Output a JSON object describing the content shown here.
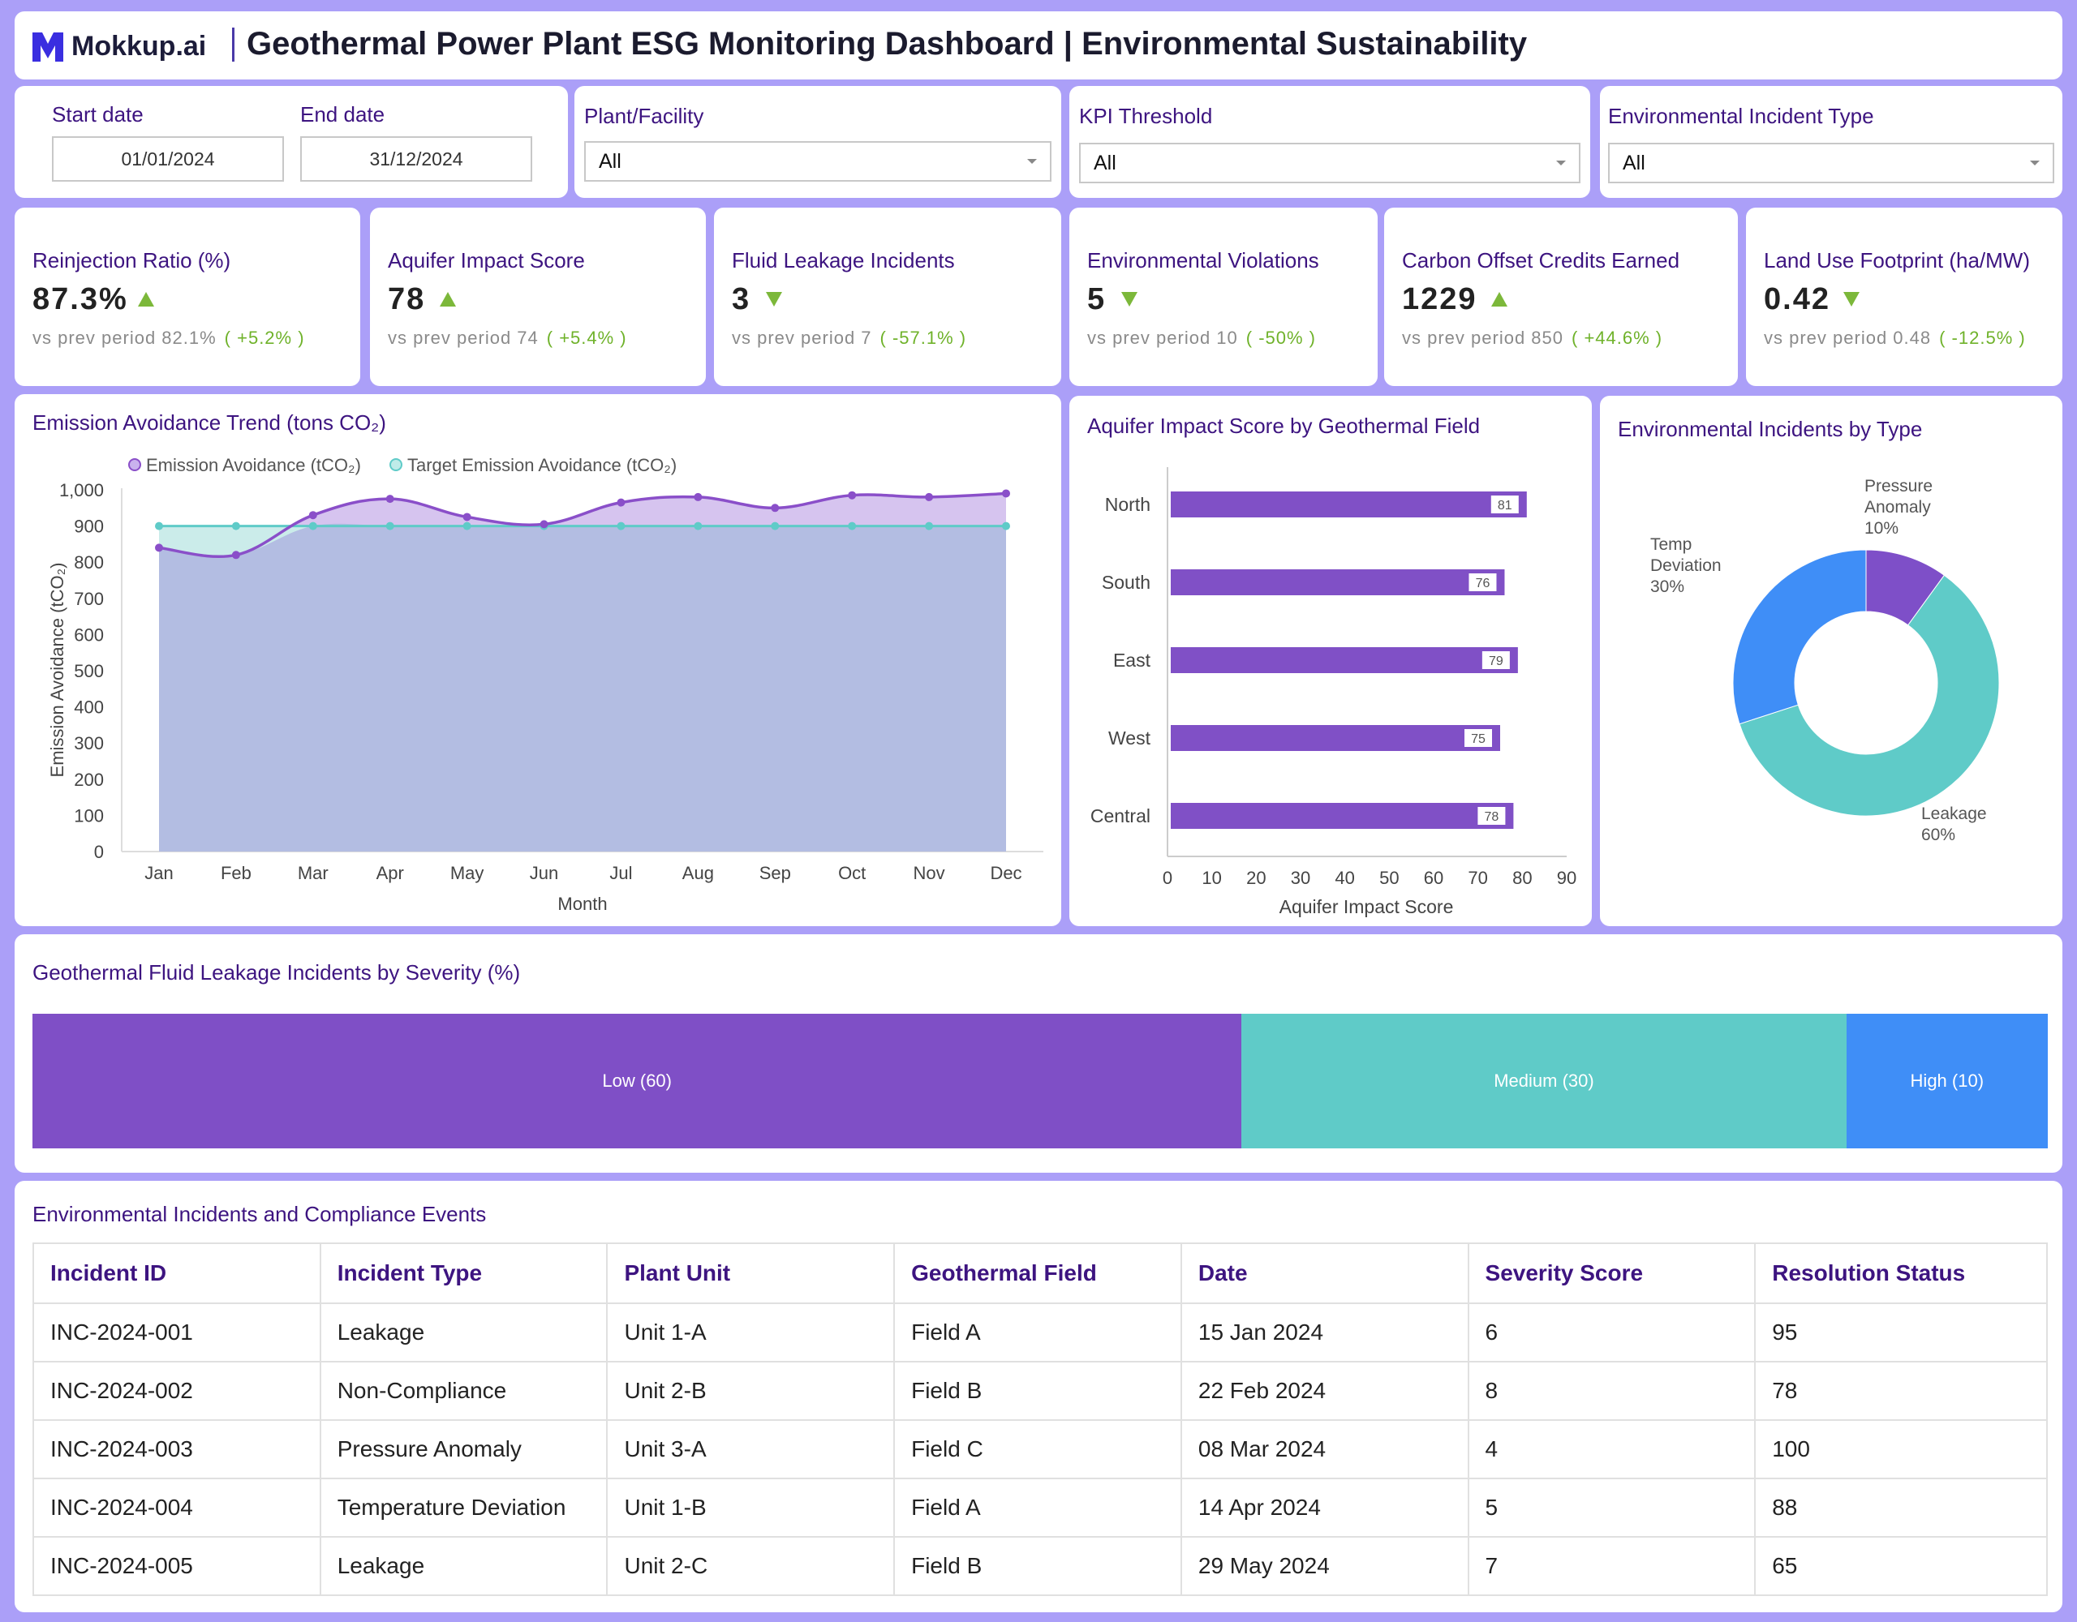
{
  "header": {
    "logo": "Mokkup.ai",
    "title": "Geothermal Power Plant ESG Monitoring Dashboard | Environmental Sustainability"
  },
  "filters": {
    "start_label": "Start date",
    "start_value": "01/01/2024",
    "end_label": "End date",
    "end_value": "31/12/2024",
    "plant_label": "Plant/Facility",
    "plant_value": "All",
    "kpi_label": "KPI Threshold",
    "kpi_value": "All",
    "incident_label": "Environmental Incident Type",
    "incident_value": "All"
  },
  "kpis": [
    {
      "title": "Reinjection Ratio (%)",
      "value": "87.3%",
      "trend": "up",
      "prev": "vs prev period 82.1%",
      "change": "( +5.2% )"
    },
    {
      "title": "Aquifer Impact Score",
      "value": "78",
      "trend": "up",
      "prev": "vs prev period 74",
      "change": "( +5.4% )"
    },
    {
      "title": "Fluid Leakage Incidents",
      "value": "3",
      "trend": "down",
      "prev": "vs prev period 7",
      "change": "( -57.1% )"
    },
    {
      "title": "Environmental Violations",
      "value": "5",
      "trend": "down",
      "prev": "vs prev period 10",
      "change": "( -50% )"
    },
    {
      "title": "Carbon Offset Credits Earned",
      "value": "1229",
      "trend": "up",
      "prev": "vs prev period 850",
      "change": "( +44.6% )"
    },
    {
      "title": "Land Use Footprint (ha/MW)",
      "value": "0.42",
      "trend": "down",
      "prev": "vs prev period 0.48",
      "change": "( -12.5% )"
    }
  ],
  "emission": {
    "title": "Emission Avoidance Trend (tons CO₂)",
    "legend_a": "Emission Avoidance (tCO₂)",
    "legend_b": "Target Emission Avoidance (tCO₂)"
  },
  "aquifer": {
    "title": "Aquifer Impact Score by Geothermal Field"
  },
  "incidents_type": {
    "title": "Environmental Incidents by Type"
  },
  "severity": {
    "title": "Geothermal Fluid Leakage Incidents by Severity (%)"
  },
  "chart_data": [
    {
      "type": "area",
      "title": "Emission Avoidance Trend (tons CO₂)",
      "xlabel": "Month",
      "ylabel": "Emission Avoidance (tCO₂)",
      "ylim": [
        0,
        1000
      ],
      "yticks": [
        "0",
        "100",
        "200",
        "300",
        "400",
        "500",
        "600",
        "700",
        "800",
        "900",
        "1,000"
      ],
      "categories": [
        "Jan",
        "Feb",
        "Mar",
        "Apr",
        "May",
        "Jun",
        "Jul",
        "Aug",
        "Sep",
        "Oct",
        "Nov",
        "Dec"
      ],
      "series": [
        {
          "name": "Emission Avoidance (tCO₂)",
          "values": [
            840,
            820,
            930,
            975,
            925,
            905,
            965,
            980,
            950,
            985,
            980,
            990
          ],
          "color": "#8a4fc9"
        },
        {
          "name": "Target Emission Avoidance (tCO₂)",
          "values": [
            900,
            900,
            900,
            900,
            900,
            900,
            900,
            900,
            900,
            900,
            900,
            900
          ],
          "color": "#5fcbc8"
        }
      ],
      "legend": "top"
    },
    {
      "type": "bar",
      "orientation": "horizontal",
      "title": "Aquifer Impact Score by Geothermal Field",
      "xlabel": "Aquifer Impact Score",
      "xlim": [
        0,
        90
      ],
      "xticks": [
        "0",
        "10",
        "20",
        "30",
        "40",
        "50",
        "60",
        "70",
        "80",
        "90"
      ],
      "categories": [
        "North",
        "South",
        "East",
        "West",
        "Central"
      ],
      "values": [
        81,
        76,
        79,
        75,
        78
      ],
      "color": "#8050c6"
    },
    {
      "type": "pie",
      "title": "Environmental Incidents by Type",
      "slices": [
        {
          "label": "Pressure Anomaly",
          "label_lines": [
            "Pressure",
            "Anomaly"
          ],
          "value": 10,
          "pct": "10%",
          "color": "#7e4fc8"
        },
        {
          "label": "Leakage",
          "label_lines": [
            "Leakage"
          ],
          "value": 60,
          "pct": "60%",
          "color": "#5fcbc8"
        },
        {
          "label": "Temp Deviation",
          "label_lines": [
            "Temp",
            "Deviation"
          ],
          "value": 30,
          "pct": "30%",
          "color": "#3f8ef7"
        }
      ]
    },
    {
      "type": "bar",
      "orientation": "stacked-horizontal",
      "title": "Geothermal Fluid Leakage Incidents by Severity (%)",
      "categories": [
        "Low (60)",
        "Medium (30)",
        "High (10)"
      ],
      "values": [
        60,
        30,
        10
      ],
      "colors": [
        "#7f4fc6",
        "#5fcbc8",
        "#3f8ef7"
      ]
    }
  ],
  "table": {
    "title": "Environmental Incidents and Compliance Events",
    "columns": [
      "Incident ID",
      "Incident Type",
      "Plant Unit",
      "Geothermal Field",
      "Date",
      "Severity Score",
      "Resolution Status"
    ],
    "rows": [
      [
        "INC-2024-001",
        "Leakage",
        "Unit 1-A",
        "Field A",
        "15 Jan 2024",
        "6",
        "95"
      ],
      [
        "INC-2024-002",
        "Non-Compliance",
        "Unit 2-B",
        "Field B",
        "22 Feb 2024",
        "8",
        "78"
      ],
      [
        "INC-2024-003",
        "Pressure Anomaly",
        "Unit 3-A",
        "Field C",
        "08 Mar 2024",
        "4",
        "100"
      ],
      [
        "INC-2024-004",
        "Temperature Deviation",
        "Unit 1-B",
        "Field A",
        "14 Apr 2024",
        "5",
        "88"
      ],
      [
        "INC-2024-005",
        "Leakage",
        "Unit 2-C",
        "Field B",
        "29 May 2024",
        "7",
        "65"
      ]
    ]
  },
  "colors": {
    "accent": "#3d1480",
    "background": "#ab9ff8",
    "positive": "#7cb83a"
  }
}
